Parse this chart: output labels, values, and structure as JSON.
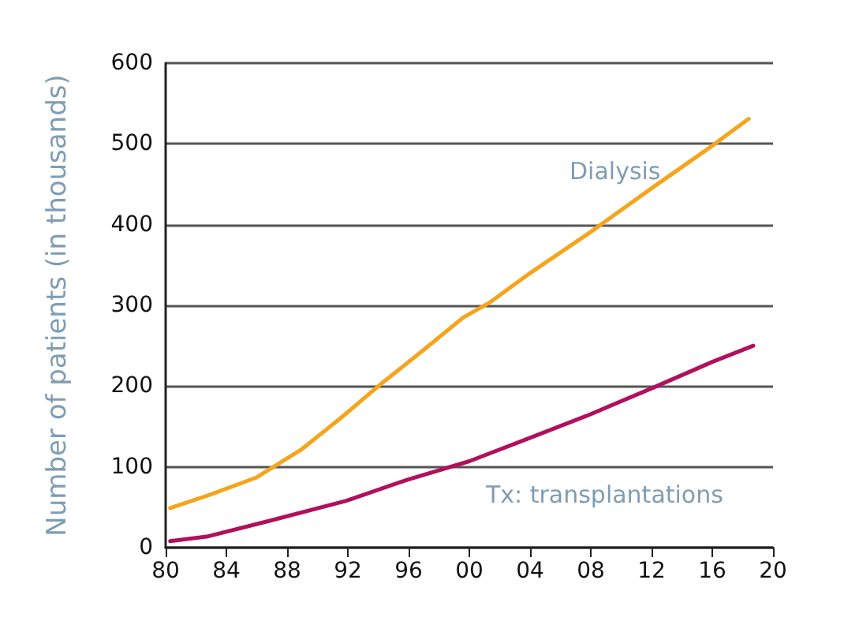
{
  "chart_data": {
    "type": "line",
    "ylabel": "Number of patients (in thousands)",
    "xlim": [
      1980,
      2020
    ],
    "ylim": [
      0,
      600
    ],
    "xticks": [
      {
        "value": 1980,
        "label": "80"
      },
      {
        "value": 1984,
        "label": "84"
      },
      {
        "value": 1988,
        "label": "88"
      },
      {
        "value": 1992,
        "label": "92"
      },
      {
        "value": 1996,
        "label": "96"
      },
      {
        "value": 2000,
        "label": "00"
      },
      {
        "value": 2004,
        "label": "04"
      },
      {
        "value": 2008,
        "label": "08"
      },
      {
        "value": 2012,
        "label": "12"
      },
      {
        "value": 2016,
        "label": "16"
      },
      {
        "value": 2020,
        "label": "20"
      }
    ],
    "yticks": [
      0,
      100,
      200,
      300,
      400,
      500,
      600
    ],
    "grid": "y",
    "marker": "none",
    "line_style": "solid",
    "series": [
      {
        "color": "#f5a41c",
        "x": [
          1980.3,
          1983,
          1986,
          1988.9,
          1991.5,
          1994.2,
          1997,
          1999.6,
          2001.3,
          2004,
          2008,
          2012,
          2016.1,
          2018.4
        ],
        "values": [
          49,
          66,
          87,
          121,
          160,
          203,
          245,
          285,
          303,
          340,
          391,
          445,
          499,
          531
        ]
      },
      {
        "color": "#b0105e",
        "x": [
          1980.3,
          1982.8,
          1986.8,
          1991.9,
          1995.9,
          2000,
          2004,
          2007.7,
          2012.1,
          2016,
          2018.7
        ],
        "values": [
          8,
          14,
          33,
          58,
          84,
          107,
          136,
          163,
          198,
          230,
          250
        ]
      }
    ],
    "annotations": [
      "Dialysis",
      "Tx: transplantations"
    ]
  }
}
